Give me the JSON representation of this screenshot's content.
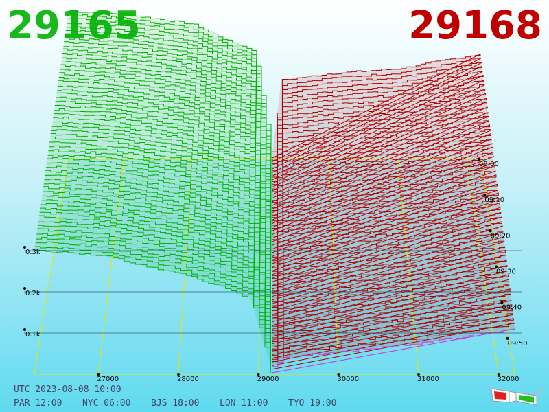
{
  "header": {
    "best_bid": "29165",
    "best_ask": "29168"
  },
  "colors": {
    "bid": "#00b000",
    "ask": "#b00000",
    "bid_price_text": "#19b81b",
    "ask_price_text": "#c00000",
    "grid": "#e6e600",
    "accent_ask_front": "#cc33cc"
  },
  "footer": {
    "utc_time": "UTC 2023-08-08 10:00",
    "par": "PAR 12:00",
    "nyc": "NYC 06:00",
    "bjs": "BJS 18:00",
    "lon": "LON 11:00",
    "tyo": "TYO 19:00"
  },
  "icons": {
    "glasses": "anaglyph-3d-glasses-icon"
  },
  "chart_data": {
    "type": "area",
    "title": "",
    "x_axis": {
      "label": "",
      "ticks": [
        "27000",
        "28000",
        "29000",
        "30000",
        "31000",
        "32000"
      ],
      "tick_values": [
        27000,
        28000,
        29000,
        30000,
        31000,
        32000
      ],
      "range": [
        26200,
        32200
      ]
    },
    "depth_axis": {
      "label": "",
      "ticks": [
        "0.1k",
        "0.2k",
        "0.3k"
      ],
      "tick_values": [
        100,
        200,
        300
      ],
      "range": [
        0,
        500
      ]
    },
    "time_axis": {
      "label": "",
      "ticks": [
        "09:00",
        "09:10",
        "09:20",
        "09:30",
        "09:40",
        "09:50"
      ],
      "range": [
        "09:00",
        "10:00"
      ]
    },
    "grid": true,
    "series": [
      {
        "name": "",
        "side": "bid",
        "color": "#00b000",
        "depth_profile_front": [
          [
            26200,
            300
          ],
          [
            27000,
            290
          ],
          [
            28000,
            245
          ],
          [
            28500,
            215
          ],
          [
            28900,
            185
          ],
          [
            29150,
            20
          ]
        ],
        "depth_profile_back": [
          [
            26200,
            450
          ],
          [
            27000,
            440
          ],
          [
            28000,
            410
          ],
          [
            28600,
            360
          ],
          [
            28900,
            330
          ],
          [
            29150,
            20
          ]
        ]
      },
      {
        "name": "",
        "side": "ask",
        "color": "#b00000",
        "depth_profile_front": [
          [
            29170,
            20
          ],
          [
            29300,
            40
          ],
          [
            30000,
            55
          ],
          [
            31000,
            75
          ],
          [
            32200,
            110
          ]
        ],
        "depth_profile_back": [
          [
            29170,
            20
          ],
          [
            29300,
            240
          ],
          [
            30000,
            260
          ],
          [
            31000,
            275
          ],
          [
            32200,
            320
          ]
        ]
      }
    ],
    "slices": 60
  }
}
